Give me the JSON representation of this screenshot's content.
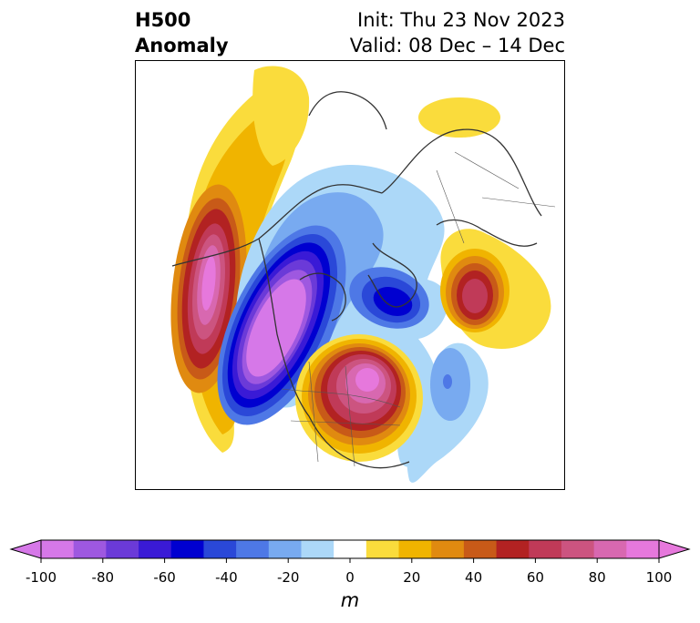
{
  "title": {
    "left_line1": "H500",
    "left_line2": "Anomaly",
    "right_line1": "Init: Thu 23 Nov 2023",
    "right_line2": "Valid: 08 Dec – 14 Dec"
  },
  "colorbar": {
    "unit": "m",
    "tick_labels": [
      "-100",
      "-80",
      "-60",
      "-40",
      "-20",
      "0",
      "20",
      "40",
      "60",
      "80",
      "100"
    ],
    "range": [
      -100,
      100
    ],
    "step": 10,
    "colors": [
      "#d678e8",
      "#9e58e0",
      "#6b3ad8",
      "#3a1ad6",
      "#0000d0",
      "#2a48d8",
      "#4e78e6",
      "#78aaf0",
      "#acd8f8",
      "#ffffff",
      "#fadc3c",
      "#f0b400",
      "#e08a10",
      "#c85a18",
      "#b22222",
      "#c03a58",
      "#cc5480",
      "#d868b0",
      "#e678dc"
    ],
    "extend": "both",
    "under_color": "#d678e8",
    "over_color": "#e678dc"
  },
  "map": {
    "projection": "polar-stereographic",
    "region": "North America / North Pole",
    "features": [
      {
        "name": "pacific-ridge",
        "sign": "positive",
        "peak_m": 100
      },
      {
        "name": "western-us-trough",
        "sign": "negative",
        "peak_m": -100
      },
      {
        "name": "eastern-us-ridge",
        "sign": "positive",
        "peak_m": 100
      },
      {
        "name": "greenland-low",
        "sign": "negative",
        "peak_m": -60
      },
      {
        "name": "europe-ridge",
        "sign": "positive",
        "peak_m": 80
      },
      {
        "name": "atlantic-low",
        "sign": "negative",
        "peak_m": -40
      },
      {
        "name": "siberia-ridge",
        "sign": "positive",
        "peak_m": 20
      }
    ]
  }
}
